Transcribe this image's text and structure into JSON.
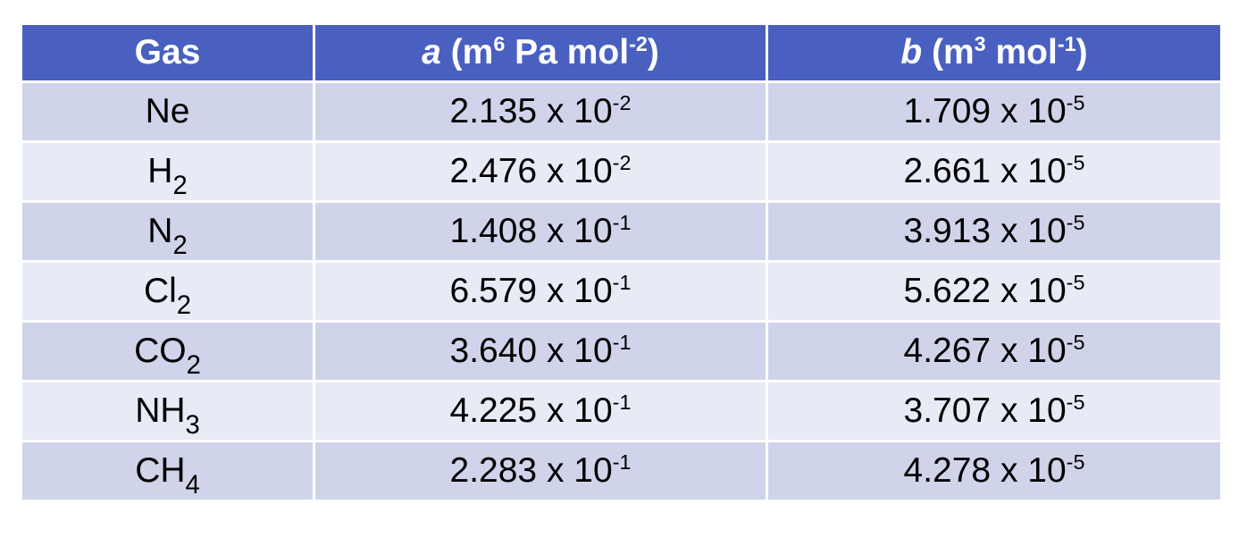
{
  "table": {
    "header": [
      [
        {
          "text": "Gas"
        }
      ],
      [
        {
          "text": "a",
          "italic": true
        },
        {
          "text": " (m"
        },
        {
          "text": "6",
          "sup": true
        },
        {
          "text": " Pa mol"
        },
        {
          "text": "-2",
          "sup": true
        },
        {
          "text": ")"
        }
      ],
      [
        {
          "text": "b",
          "italic": true
        },
        {
          "text": " (m"
        },
        {
          "text": "3",
          "sup": true
        },
        {
          "text": " mol"
        },
        {
          "text": "-1",
          "sup": true
        },
        {
          "text": ")"
        }
      ]
    ],
    "rows": [
      [
        [
          {
            "text": "Ne"
          }
        ],
        [
          {
            "text": "2.135 x 10"
          },
          {
            "text": "-2",
            "sup": true
          }
        ],
        [
          {
            "text": "1.709 x 10"
          },
          {
            "text": "-5",
            "sup": true
          }
        ]
      ],
      [
        [
          {
            "text": "H"
          },
          {
            "text": "2",
            "sub": true
          }
        ],
        [
          {
            "text": "2.476 x 10"
          },
          {
            "text": "-2",
            "sup": true
          }
        ],
        [
          {
            "text": "2.661 x 10"
          },
          {
            "text": "-5",
            "sup": true
          }
        ]
      ],
      [
        [
          {
            "text": "N"
          },
          {
            "text": "2",
            "sub": true
          }
        ],
        [
          {
            "text": "1.408 x 10"
          },
          {
            "text": "-1",
            "sup": true
          }
        ],
        [
          {
            "text": "3.913 x 10"
          },
          {
            "text": "-5",
            "sup": true
          }
        ]
      ],
      [
        [
          {
            "text": "Cl"
          },
          {
            "text": "2",
            "sub": true
          }
        ],
        [
          {
            "text": "6.579 x 10"
          },
          {
            "text": "-1",
            "sup": true
          }
        ],
        [
          {
            "text": "5.622 x 10"
          },
          {
            "text": "-5",
            "sup": true
          }
        ]
      ],
      [
        [
          {
            "text": "CO"
          },
          {
            "text": "2",
            "sub": true
          }
        ],
        [
          {
            "text": "3.640 x 10"
          },
          {
            "text": "-1",
            "sup": true
          }
        ],
        [
          {
            "text": "4.267 x 10"
          },
          {
            "text": "-5",
            "sup": true
          }
        ]
      ],
      [
        [
          {
            "text": "NH"
          },
          {
            "text": "3",
            "sub": true
          }
        ],
        [
          {
            "text": "4.225 x 10"
          },
          {
            "text": "-1",
            "sup": true
          }
        ],
        [
          {
            "text": "3.707 x 10"
          },
          {
            "text": "-5",
            "sup": true
          }
        ]
      ],
      [
        [
          {
            "text": "CH"
          },
          {
            "text": "4",
            "sub": true
          }
        ],
        [
          {
            "text": "2.283 x 10"
          },
          {
            "text": "-1",
            "sup": true
          }
        ],
        [
          {
            "text": "4.278 x 10"
          },
          {
            "text": "-5",
            "sup": true
          }
        ]
      ]
    ]
  }
}
